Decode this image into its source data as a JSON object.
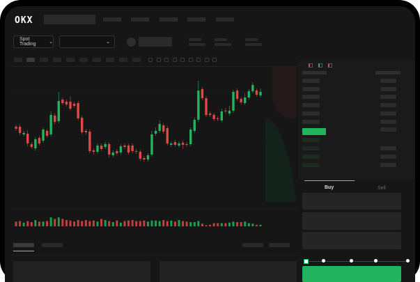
{
  "brand": {
    "logo": "OKX"
  },
  "toolbar": {
    "market_select": "Spot Trading",
    "pair_select": ""
  },
  "trade": {
    "tabs": [
      {
        "label": "Buy",
        "active": true
      },
      {
        "label": "Sell",
        "active": false
      }
    ],
    "slider_percent": 0
  },
  "colors": {
    "up": "#22b35e",
    "down": "#e04848",
    "background": "#161616"
  },
  "chart_data": {
    "type": "candlestick",
    "candles": [
      [
        68,
        65,
        71,
        62
      ],
      [
        68,
        59,
        71,
        56
      ],
      [
        57,
        59,
        62,
        54
      ],
      [
        58,
        44,
        63,
        40
      ],
      [
        43,
        39,
        46,
        36
      ],
      [
        37,
        50,
        53,
        33
      ],
      [
        52,
        44,
        55,
        41
      ],
      [
        48,
        64,
        67,
        45
      ],
      [
        62,
        55,
        65,
        52
      ],
      [
        57,
        85,
        90,
        54
      ],
      [
        84,
        75,
        87,
        72
      ],
      [
        76,
        105,
        118,
        73
      ],
      [
        107,
        102,
        110,
        99
      ],
      [
        104,
        100,
        107,
        97
      ],
      [
        104,
        94,
        112,
        91
      ],
      [
        101,
        98,
        104,
        95
      ],
      [
        102,
        80,
        105,
        77
      ],
      [
        81,
        60,
        84,
        57
      ],
      [
        62,
        60,
        65,
        57
      ],
      [
        61,
        33,
        64,
        30
      ],
      [
        34,
        32,
        37,
        28
      ],
      [
        32,
        41,
        44,
        29
      ],
      [
        41,
        36,
        44,
        33
      ],
      [
        39,
        43,
        46,
        36
      ],
      [
        43,
        28,
        46,
        24
      ],
      [
        27,
        31,
        34,
        24
      ],
      [
        33,
        30,
        36,
        27
      ],
      [
        31,
        40,
        43,
        28
      ],
      [
        41,
        39,
        44,
        36
      ],
      [
        41,
        31,
        44,
        28
      ],
      [
        41,
        33,
        44,
        30
      ],
      [
        33,
        32,
        36,
        29
      ],
      [
        32,
        22,
        35,
        19
      ],
      [
        23,
        21,
        26,
        18
      ],
      [
        21,
        27,
        30,
        18
      ],
      [
        28,
        57,
        62,
        25
      ],
      [
        58,
        62,
        67,
        55
      ],
      [
        62,
        72,
        77,
        59
      ],
      [
        70,
        61,
        73,
        58
      ],
      [
        66,
        44,
        69,
        41
      ],
      [
        42,
        44,
        47,
        39
      ],
      [
        46,
        42,
        49,
        39
      ],
      [
        41,
        44,
        47,
        38
      ],
      [
        45,
        42,
        48,
        36
      ],
      [
        43,
        42,
        46,
        39
      ],
      [
        43,
        64,
        67,
        40
      ],
      [
        62,
        78,
        81,
        59
      ],
      [
        78,
        120,
        134,
        75
      ],
      [
        122,
        109,
        125,
        106
      ],
      [
        109,
        85,
        112,
        82
      ],
      [
        87,
        85,
        90,
        82
      ],
      [
        85,
        79,
        88,
        76
      ],
      [
        80,
        79,
        83,
        76
      ],
      [
        77,
        90,
        94,
        74
      ],
      [
        91,
        90,
        95,
        87
      ],
      [
        87,
        91,
        98,
        84
      ],
      [
        91,
        118,
        121,
        88
      ],
      [
        120,
        108,
        123,
        105
      ],
      [
        108,
        103,
        111,
        100
      ],
      [
        102,
        110,
        116,
        99
      ],
      [
        110,
        119,
        122,
        107
      ],
      [
        119,
        128,
        132,
        116
      ],
      [
        120,
        114,
        123,
        111
      ],
      [
        113,
        118,
        123,
        110
      ]
    ],
    "volumes": [
      9,
      10,
      7,
      10,
      8,
      12,
      9,
      9,
      10,
      17,
      14,
      17,
      14,
      12,
      11,
      9,
      12,
      10,
      12,
      10,
      11,
      9,
      14,
      12,
      10,
      8,
      11,
      7,
      10,
      11,
      12,
      10,
      10,
      11,
      9,
      11,
      11,
      10,
      12,
      10,
      11,
      9,
      12,
      10,
      9,
      8,
      8,
      10,
      5,
      2,
      3,
      6,
      6,
      6,
      6,
      7,
      9,
      8,
      8,
      9,
      6,
      5,
      3,
      3
    ],
    "series_colors": {
      "up": "#22b35e",
      "down": "#e04848"
    }
  }
}
